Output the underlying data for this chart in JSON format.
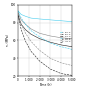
{
  "title": "",
  "ylabel": "τᵣ (MPa)",
  "xlabel": "Time (h)",
  "xlim": [
    0,
    5000
  ],
  "ylim": [
    20,
    100
  ],
  "yticks": [
    20,
    40,
    60,
    80,
    100
  ],
  "xticks": [
    0,
    1000,
    2000,
    3000,
    4000,
    5000
  ],
  "xtick_labels": [
    "0",
    "1 000",
    "2 000",
    "3 000",
    "4 000",
    "5 000"
  ],
  "background_color": "#ffffff",
  "series": [
    {
      "label": "A, 50°C",
      "color": "#44ccee",
      "linestyle": "-",
      "x": [
        0,
        300,
        700,
        1200,
        2000,
        3000,
        4000,
        5000
      ],
      "y": [
        93,
        89,
        87,
        85,
        84,
        83,
        82,
        81
      ]
    },
    {
      "label": "B, 50°C",
      "color": "#888888",
      "linestyle": "-",
      "x": [
        0,
        300,
        700,
        1200,
        2000,
        3000,
        4000,
        5000
      ],
      "y": [
        91,
        83,
        78,
        73,
        68,
        65,
        63,
        62
      ]
    },
    {
      "label": "C, 50°C",
      "color": "#222222",
      "linestyle": "-",
      "x": [
        0,
        300,
        700,
        1200,
        2000,
        3000,
        4000,
        5000
      ],
      "y": [
        88,
        78,
        72,
        67,
        62,
        58,
        55,
        53
      ]
    },
    {
      "label": "A, 70°C",
      "color": "#44ccee",
      "linestyle": "--",
      "x": [
        0,
        300,
        700,
        1200,
        2000,
        3000,
        4000,
        5000
      ],
      "y": [
        93,
        85,
        78,
        71,
        64,
        57,
        53,
        50
      ]
    },
    {
      "label": "B, 70°C",
      "color": "#888888",
      "linestyle": "--",
      "x": [
        0,
        300,
        700,
        1200,
        2000,
        3000,
        4000,
        5000
      ],
      "y": [
        91,
        78,
        68,
        59,
        49,
        40,
        35,
        32
      ]
    },
    {
      "label": "C, 70°C",
      "color": "#222222",
      "linestyle": "--",
      "x": [
        0,
        300,
        700,
        1200,
        2000,
        3000,
        4000,
        5000
      ],
      "y": [
        88,
        72,
        59,
        48,
        37,
        28,
        23,
        21
      ]
    }
  ]
}
